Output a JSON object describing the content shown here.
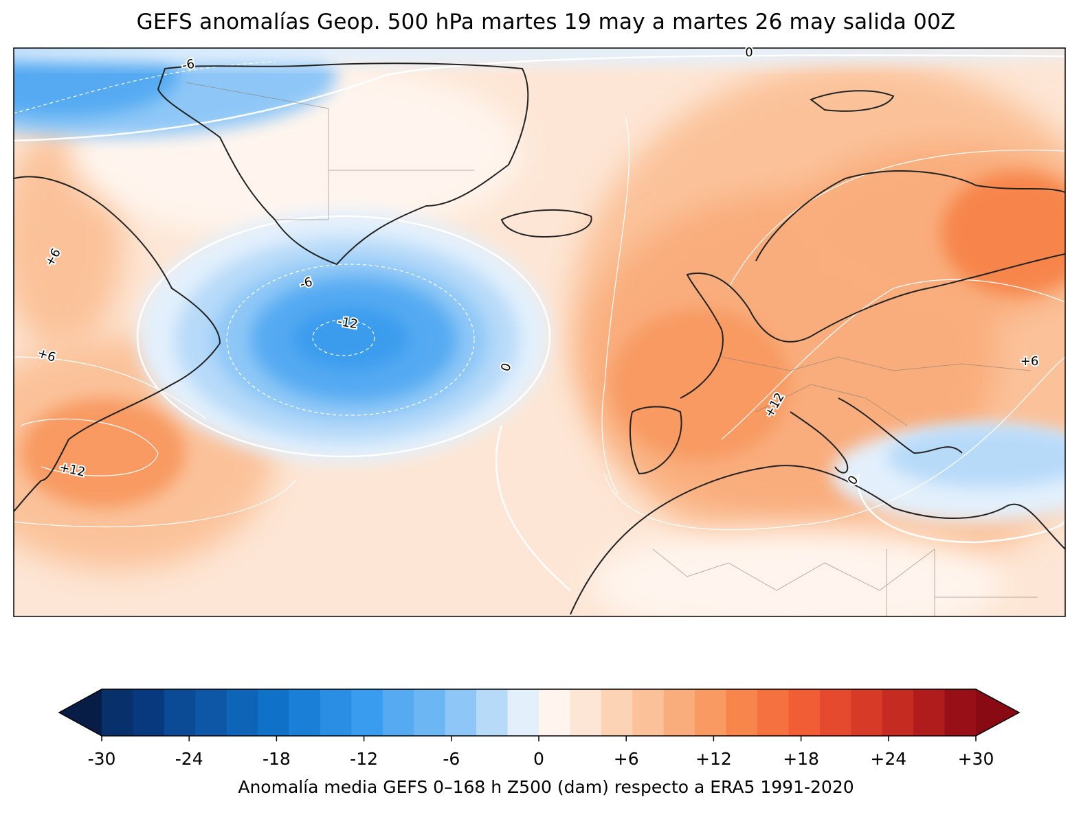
{
  "title": "GEFS anomalías Geop. 500 hPa martes 19 may a martes 26 may salida 00Z",
  "colorbar": {
    "label": "Anomalía media GEFS 0–168 h Z500 (dam) respecto a ERA5 1991-2020",
    "ticks": [
      "-30",
      "-24",
      "-18",
      "-12",
      "-6",
      "0",
      "+6",
      "+12",
      "+18",
      "+24",
      "+30"
    ],
    "colors": [
      "#08306b",
      "#08397e",
      "#0b4a94",
      "#0d57a6",
      "#0e65b8",
      "#0f72c8",
      "#1a7fd6",
      "#2a8ee4",
      "#3a9cee",
      "#55aaf2",
      "#6cb6f4",
      "#8ec7f7",
      "#b7daf9",
      "#e3f0fc",
      "#fff5ee",
      "#fde6d5",
      "#fcd4b5",
      "#fbc29a",
      "#f9ad7c",
      "#f89a62",
      "#f7854c",
      "#f5713f",
      "#f15d35",
      "#e64a2e",
      "#d83a28",
      "#c62b22",
      "#b01c1c",
      "#990f17"
    ],
    "extend_low_color": "#081d45",
    "extend_high_color": "#8a0a14"
  },
  "contour_labels": [
    {
      "text": "-6",
      "angle": -10
    },
    {
      "text": "0",
      "angle": 0
    },
    {
      "text": "+6",
      "angle": -60
    },
    {
      "text": "-6",
      "angle": -15
    },
    {
      "text": "-12",
      "angle": 10
    },
    {
      "text": "0",
      "angle": -70
    },
    {
      "text": "+6",
      "angle": 18
    },
    {
      "text": "+12",
      "angle": 12
    },
    {
      "text": "+12",
      "angle": -60
    },
    {
      "text": "0",
      "angle": -55
    },
    {
      "text": "+6",
      "angle": 0
    }
  ]
}
